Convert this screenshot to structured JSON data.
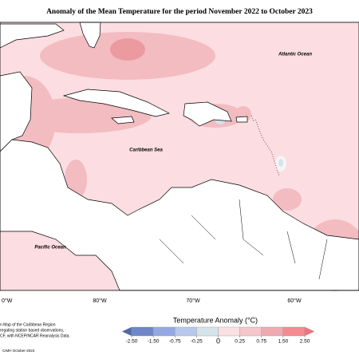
{
  "title": "Anomaly of the Mean Temperature for the period November 2022 to October 2023",
  "map_labels": [
    "Atlantic Ocean",
    "Caribbean Sea",
    "Pacific Ocean"
  ],
  "longitude_labels": [
    "0°W",
    "80°W",
    "70°W",
    "60°W"
  ],
  "footnote": [
    "n Map of the Caribbean Region",
    "regating station based observations,",
    "CF, with NCEP/NCAR Reanalysis Data."
  ],
  "credit": "CIMH October-2023",
  "legend": {
    "title": "Temperature Anomaly (°C)",
    "ticks": [
      {
        "value": -2.5,
        "label": "-2.50"
      },
      {
        "value": -1.5,
        "label": "-1.50"
      },
      {
        "value": -0.75,
        "label": "-0.75"
      },
      {
        "value": -0.25,
        "label": "-0.25"
      },
      0,
      {
        "value": 0.25,
        "label": "0.25"
      },
      {
        "value": 0.75,
        "label": "0.75"
      },
      {
        "value": 1.5,
        "label": "1.50"
      },
      {
        "value": 2.5,
        "label": "2.50"
      }
    ],
    "colors": [
      "#5068a8",
      "#6f86c8",
      "#94a9e2",
      "#b8c8ec",
      "#d6e3ea",
      "#f8e0e3",
      "#f5c6cb",
      "#efaab0",
      "#f58a90",
      "#f7717a"
    ]
  }
}
